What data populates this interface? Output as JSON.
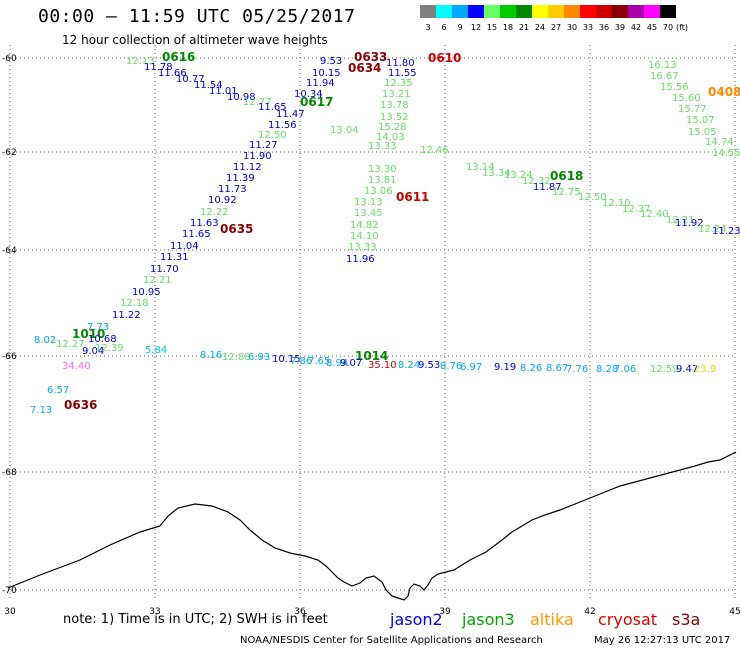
{
  "header": {
    "title": "00:00 – 11:59 UTC 05/25/2017",
    "subtitle": "12 hour collection of altimeter wave heights"
  },
  "legend": {
    "unit": "(ft)",
    "bins": [
      {
        "label": "3",
        "color": "#808080"
      },
      {
        "label": "6",
        "color": "#00ffff"
      },
      {
        "label": "9",
        "color": "#00a8ff"
      },
      {
        "label": "12",
        "color": "#0000ff"
      },
      {
        "label": "15",
        "color": "#66ff66"
      },
      {
        "label": "18",
        "color": "#00cc00"
      },
      {
        "label": "21",
        "color": "#008800"
      },
      {
        "label": "24",
        "color": "#ffff00"
      },
      {
        "label": "27",
        "color": "#ffcc00"
      },
      {
        "label": "30",
        "color": "#ff8800"
      },
      {
        "label": "33",
        "color": "#ff0000"
      },
      {
        "label": "36",
        "color": "#cc0000"
      },
      {
        "label": "39",
        "color": "#880000"
      },
      {
        "label": "42",
        "color": "#aa00aa"
      },
      {
        "label": "45",
        "color": "#ff00ff"
      },
      {
        "label": "70",
        "color": "#000000"
      }
    ]
  },
  "map": {
    "lat_labels": [
      "-60",
      "-62",
      "-64",
      "-66",
      "-68",
      "-70"
    ],
    "lon_labels": [
      "30",
      "33",
      "36",
      "39",
      "42",
      "45"
    ],
    "passes": [
      {
        "label": "0616",
        "color": "#008800"
      },
      {
        "label": "0633",
        "color": "#880000"
      },
      {
        "label": "0634",
        "color": "#880000"
      },
      {
        "label": "0610",
        "color": "#cc0000"
      },
      {
        "label": "0617",
        "color": "#008800"
      },
      {
        "label": "0611",
        "color": "#cc0000"
      },
      {
        "label": "0618",
        "color": "#008800"
      },
      {
        "label": "0635",
        "color": "#880000"
      },
      {
        "label": "1010",
        "color": "#008800"
      },
      {
        "label": "0636",
        "color": "#880000"
      },
      {
        "label": "1014",
        "color": "#008800"
      },
      {
        "label": "0408",
        "color": "#ff8800"
      }
    ],
    "values": [
      {
        "t": "12.13",
        "c": "#66dd66"
      },
      {
        "t": "11.78",
        "c": "#0000cc"
      },
      {
        "t": "11.66",
        "c": "#0000cc"
      },
      {
        "t": "10.77",
        "c": "#0000cc"
      },
      {
        "t": "11.54",
        "c": "#0000cc"
      },
      {
        "t": "11.01",
        "c": "#0000cc"
      },
      {
        "t": "10.98",
        "c": "#0000cc"
      },
      {
        "t": "12.77",
        "c": "#66dd66"
      },
      {
        "t": "11.65",
        "c": "#0000cc"
      },
      {
        "t": "11.47",
        "c": "#0000cc"
      },
      {
        "t": "11.56",
        "c": "#0000cc"
      },
      {
        "t": "12.50",
        "c": "#66dd66"
      },
      {
        "t": "11.27",
        "c": "#0000cc"
      },
      {
        "t": "11.90",
        "c": "#0000cc"
      },
      {
        "t": "11.12",
        "c": "#0000cc"
      },
      {
        "t": "11.39",
        "c": "#0000cc"
      },
      {
        "t": "11.73",
        "c": "#0000cc"
      },
      {
        "t": "10.92",
        "c": "#0000cc"
      },
      {
        "t": "12.22",
        "c": "#66dd66"
      },
      {
        "t": "11.63",
        "c": "#0000cc"
      },
      {
        "t": "11.65",
        "c": "#0000cc"
      },
      {
        "t": "11.04",
        "c": "#0000cc"
      },
      {
        "t": "11.31",
        "c": "#0000cc"
      },
      {
        "t": "11.70",
        "c": "#0000cc"
      },
      {
        "t": "12.21",
        "c": "#66dd66"
      },
      {
        "t": "10.95",
        "c": "#0000cc"
      },
      {
        "t": "12.18",
        "c": "#66dd66"
      },
      {
        "t": "11.22",
        "c": "#0000cc"
      },
      {
        "t": "7.73",
        "c": "#00aaee"
      },
      {
        "t": "8.02",
        "c": "#00aaee"
      },
      {
        "t": "12.27",
        "c": "#66dd66"
      },
      {
        "t": "10.68",
        "c": "#0000cc"
      },
      {
        "t": "9.04",
        "c": "#0000cc"
      },
      {
        "t": "12.39",
        "c": "#66dd66"
      },
      {
        "t": "5.84",
        "c": "#00cccc"
      },
      {
        "t": "34.40",
        "c": "#ff66ff"
      },
      {
        "t": "6.57",
        "c": "#00aaee"
      },
      {
        "t": "7.13",
        "c": "#00aaee"
      },
      {
        "t": "9.53",
        "c": "#0000cc"
      },
      {
        "t": "10.15",
        "c": "#0000cc"
      },
      {
        "t": "11.94",
        "c": "#0000cc"
      },
      {
        "t": "10.34",
        "c": "#0000cc"
      },
      {
        "t": "11.80",
        "c": "#0000cc"
      },
      {
        "t": "11.55",
        "c": "#0000cc"
      },
      {
        "t": "12.35",
        "c": "#66dd66"
      },
      {
        "t": "13.21",
        "c": "#66dd66"
      },
      {
        "t": "13.78",
        "c": "#66dd66"
      },
      {
        "t": "13.52",
        "c": "#66dd66"
      },
      {
        "t": "15.28",
        "c": "#66dd66"
      },
      {
        "t": "14.03",
        "c": "#66dd66"
      },
      {
        "t": "13.04",
        "c": "#66dd66"
      },
      {
        "t": "12.46",
        "c": "#66dd66"
      },
      {
        "t": "13.33",
        "c": "#66dd66"
      },
      {
        "t": "13.30",
        "c": "#66dd66"
      },
      {
        "t": "13.81",
        "c": "#66dd66"
      },
      {
        "t": "13.06",
        "c": "#66dd66"
      },
      {
        "t": "13.13",
        "c": "#66dd66"
      },
      {
        "t": "13.45",
        "c": "#66dd66"
      },
      {
        "t": "14.82",
        "c": "#66dd66"
      },
      {
        "t": "14.10",
        "c": "#66dd66"
      },
      {
        "t": "13.33",
        "c": "#66dd66"
      },
      {
        "t": "11.96",
        "c": "#0000cc"
      },
      {
        "t": "13.14",
        "c": "#66dd66"
      },
      {
        "t": "13.34",
        "c": "#66dd66"
      },
      {
        "t": "13.24",
        "c": "#66dd66"
      },
      {
        "t": "12.32",
        "c": "#66dd66"
      },
      {
        "t": "11.87",
        "c": "#0000cc"
      },
      {
        "t": "12.75",
        "c": "#66dd66"
      },
      {
        "t": "12.50",
        "c": "#66dd66"
      },
      {
        "t": "12.10",
        "c": "#66dd66"
      },
      {
        "t": "12.37",
        "c": "#66dd66"
      },
      {
        "t": "12.40",
        "c": "#66dd66"
      },
      {
        "t": "12.21",
        "c": "#66dd66"
      },
      {
        "t": "11.92",
        "c": "#0000cc"
      },
      {
        "t": "12.24",
        "c": "#66dd66"
      },
      {
        "t": "11.23",
        "c": "#0000cc"
      },
      {
        "t": "16.13",
        "c": "#66dd66"
      },
      {
        "t": "16.67",
        "c": "#66dd66"
      },
      {
        "t": "15.56",
        "c": "#66dd66"
      },
      {
        "t": "15.60",
        "c": "#66dd66"
      },
      {
        "t": "15.77",
        "c": "#66dd66"
      },
      {
        "t": "15.07",
        "c": "#66dd66"
      },
      {
        "t": "15.05",
        "c": "#66dd66"
      },
      {
        "t": "14.74",
        "c": "#66dd66"
      },
      {
        "t": "14.55",
        "c": "#66dd66"
      },
      {
        "t": "8.16",
        "c": "#00aaee"
      },
      {
        "t": "12.88",
        "c": "#66dd66"
      },
      {
        "t": "6.93",
        "c": "#00aaee"
      },
      {
        "t": "10.15",
        "c": "#0000cc"
      },
      {
        "t": "7.86",
        "c": "#00aaee"
      },
      {
        "t": "7.65",
        "c": "#00aaee"
      },
      {
        "t": "8.94",
        "c": "#00aaee"
      },
      {
        "t": "9.07",
        "c": "#0000cc"
      },
      {
        "t": "35.10",
        "c": "#cc0000"
      },
      {
        "t": "8.24",
        "c": "#00aaee"
      },
      {
        "t": "9.53",
        "c": "#0000cc"
      },
      {
        "t": "8.76",
        "c": "#00aaee"
      },
      {
        "t": "6.97",
        "c": "#00aaee"
      },
      {
        "t": "9.19",
        "c": "#0000cc"
      },
      {
        "t": "8.26",
        "c": "#00aaee"
      },
      {
        "t": "8.67",
        "c": "#00aaee"
      },
      {
        "t": "7.76",
        "c": "#00aaee"
      },
      {
        "t": "8.28",
        "c": "#00aaee"
      },
      {
        "t": "7.06",
        "c": "#00aaee"
      },
      {
        "t": "12.59",
        "c": "#66dd66"
      },
      {
        "t": "9.47",
        "c": "#0000cc"
      },
      {
        "t": "23.9",
        "c": "#dddd00"
      }
    ]
  },
  "footer": {
    "note": "note: 1) Time is in UTC; 2) SWH is in feet",
    "missions": [
      {
        "name": "jason2",
        "color": "#0000ff"
      },
      {
        "name": "jason3",
        "color": "#00aa00"
      },
      {
        "name": "altika",
        "color": "#ff9900"
      },
      {
        "name": "cryosat",
        "color": "#dd0000"
      },
      {
        "name": "s3a",
        "color": "#880000"
      }
    ],
    "credit": "NOAA/NESDIS Center for Satellite Applications and Research",
    "generated": "May 26 12:27:13 UTC 2017"
  }
}
